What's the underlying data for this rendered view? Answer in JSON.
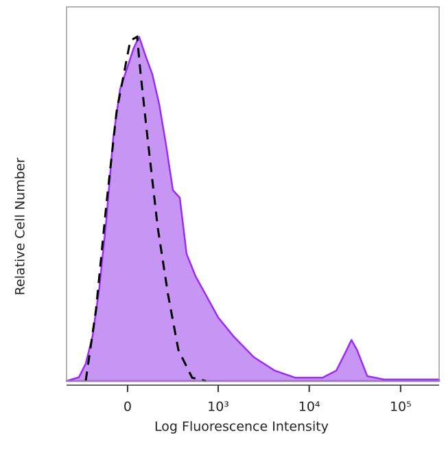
{
  "chart_data": {
    "type": "histogram-overlay",
    "xlabel": "Log Fluorescence Intensity",
    "ylabel": "Relative Cell Number",
    "xscale": "biexponential",
    "xlim": [
      -457,
      264000
    ],
    "xticks": [
      0,
      {
        "value": 1000,
        "label": "10³"
      },
      {
        "value": 10000,
        "label": "10⁴"
      },
      {
        "value": 100000,
        "label": "10⁵"
      }
    ],
    "ylim": [
      0,
      100
    ],
    "series": [
      {
        "color": "#9a2cf5",
        "fill": "#c795f3",
        "filled": true,
        "dashed": false,
        "x": [
          -457,
          -321,
          -260,
          -206,
          -159,
          -116,
          -76,
          -39,
          0,
          32,
          61,
          96,
          137,
          182,
          233,
          290,
          356,
          432,
          552,
          727,
          1000,
          1473,
          2470,
          4180,
          7000,
          14000,
          19800,
          25700,
          29000,
          33400,
          43200,
          66500,
          264000
        ],
        "values": [
          0,
          1,
          4.6,
          12,
          25,
          43,
          65,
          78,
          84,
          89,
          92,
          87,
          82,
          74,
          63,
          51,
          49,
          34,
          28,
          23,
          17,
          12,
          6.4,
          2.8,
          0.9,
          0.9,
          2.8,
          8.3,
          11,
          8.3,
          1.3,
          0.4,
          0.4
        ]
      },
      {
        "color": "#000000",
        "filled": false,
        "dashed": true,
        "x": [
          -260,
          -182,
          -116,
          -58,
          14,
          50,
          69,
          108,
          172,
          249,
          342,
          503,
          727
        ],
        "values": [
          0,
          19,
          47,
          72,
          91,
          92,
          82,
          65,
          41,
          23,
          8.3,
          0.9,
          0
        ]
      }
    ]
  }
}
